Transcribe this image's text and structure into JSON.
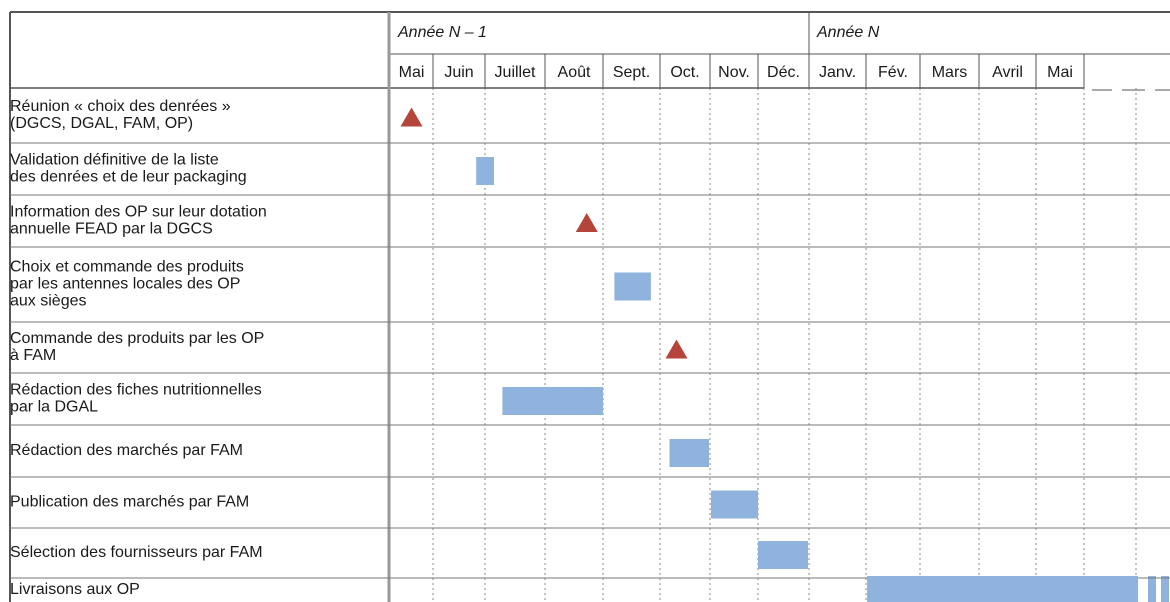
{
  "years": [
    {
      "label": "Année N – 1",
      "months": [
        "Mai",
        "Juin",
        "Juillet",
        "Août",
        "Sept.",
        "Oct.",
        "Nov.",
        "Déc."
      ]
    },
    {
      "label": "Année N",
      "months": [
        "Janv.",
        "Fév.",
        "Mars",
        "Avril",
        "Mai"
      ]
    }
  ],
  "tasks": [
    {
      "label": [
        "Réunion « choix des denrées »",
        "(DGCS, DGAL, FAM, OP)"
      ],
      "milestones": [
        0.5
      ]
    },
    {
      "label": [
        "Validation définitive de la liste",
        "des denrées et de leur packaging"
      ],
      "bars": [
        [
          1.83,
          2.15
        ]
      ]
    },
    {
      "label": [
        "Information des OP sur leur dotation",
        "annuelle FEAD par la DGCS"
      ],
      "milestones": [
        3.72
      ]
    },
    {
      "label": [
        "Choix et commande des produits",
        "par les antennes locales des OP",
        "aux sièges"
      ],
      "bars": [
        [
          4.2,
          4.84
        ]
      ]
    },
    {
      "label": [
        "Commande des produits par les OP",
        "à FAM"
      ],
      "milestones": [
        5.33
      ]
    },
    {
      "label": [
        "Rédaction des fiches nutritionnelles",
        "par la DGAL"
      ],
      "bars": [
        [
          2.29,
          4.0
        ]
      ]
    },
    {
      "label": [
        "Rédaction des marchés par FAM"
      ],
      "bars": [
        [
          5.19,
          5.98
        ]
      ]
    },
    {
      "label": [
        "Publication des marchés par FAM"
      ],
      "bars": [
        [
          6.02,
          7.0
        ]
      ]
    },
    {
      "label": [
        "Sélection des fournisseurs par FAM"
      ],
      "bars": [
        [
          7.0,
          7.98
        ]
      ]
    },
    {
      "label": [
        "Livraisons aux OP"
      ],
      "bars": [
        [
          9.02,
          14.04
        ]
      ]
    }
  ]
}
